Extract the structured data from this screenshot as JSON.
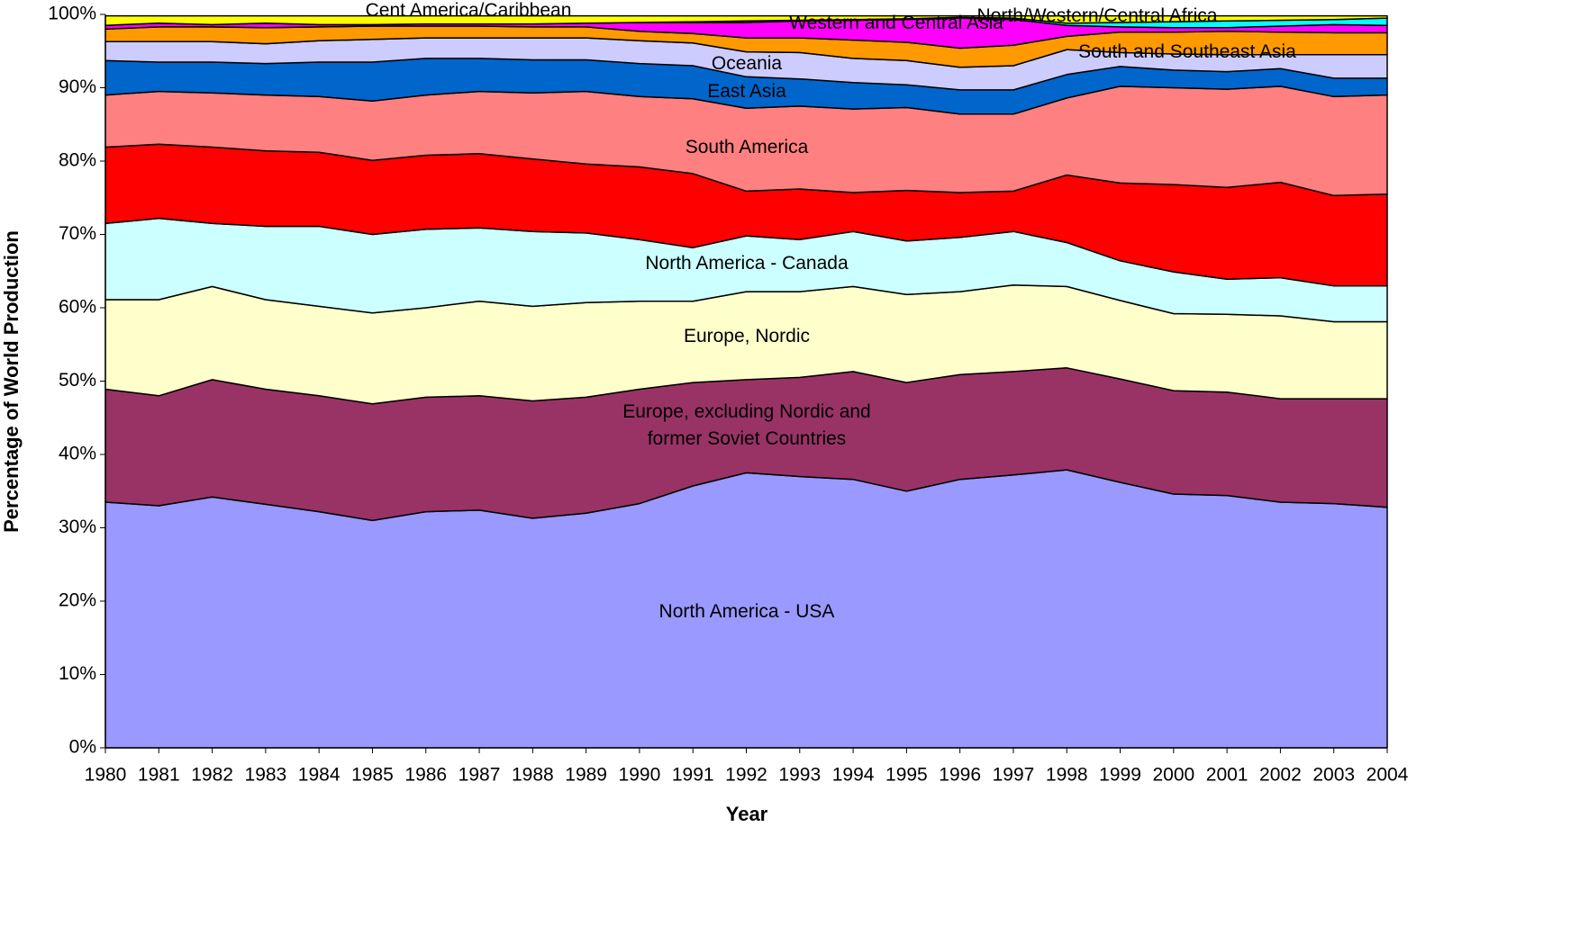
{
  "chart_data": {
    "type": "area",
    "stacked": true,
    "x_label": "Year",
    "y_label": "Percentage of World Production",
    "categories": [
      "1980",
      "1981",
      "1982",
      "1983",
      "1984",
      "1985",
      "1986",
      "1987",
      "1988",
      "1989",
      "1990",
      "1991",
      "1992",
      "1993",
      "1994",
      "1995",
      "1996",
      "1997",
      "1998",
      "1999",
      "2000",
      "2001",
      "2002",
      "2003",
      "2004"
    ],
    "ylim": [
      0,
      100
    ],
    "yticks": [
      {
        "value": 0,
        "label": "0%"
      },
      {
        "value": 10,
        "label": "10%"
      },
      {
        "value": 20,
        "label": "20%"
      },
      {
        "value": 30,
        "label": "30%"
      },
      {
        "value": 40,
        "label": "40%"
      },
      {
        "value": 50,
        "label": "50%"
      },
      {
        "value": 60,
        "label": "60%"
      },
      {
        "value": 70,
        "label": "70%"
      },
      {
        "value": 80,
        "label": "80%"
      },
      {
        "value": 90,
        "label": "90%"
      },
      {
        "value": 100,
        "label": "100%"
      }
    ],
    "grid": false,
    "series": [
      {
        "name": "North America - USA",
        "color": "#9999FF",
        "values": [
          33.5,
          33,
          34.2,
          33.2,
          32.2,
          31,
          32.2,
          32.4,
          31.3,
          32,
          33.3,
          35.7,
          37.5,
          37,
          36.6,
          35,
          36.6,
          37.2,
          37.9,
          36.2,
          34.6,
          34.4,
          33.5,
          33.3,
          32.8
        ]
      },
      {
        "name": "Europe, excluding Nordic and former Soviet Countries",
        "color": "#993366",
        "values": [
          15.4,
          15,
          16,
          15.7,
          15.8,
          15.9,
          15.6,
          15.6,
          16,
          15.8,
          15.6,
          14.1,
          12.7,
          13.5,
          14.7,
          14.8,
          14.3,
          14.1,
          13.9,
          14.1,
          14.1,
          14.1,
          14.1,
          14.3,
          14.8
        ]
      },
      {
        "name": "Europe, Nordic",
        "color": "#FFFFCC",
        "values": [
          12.2,
          13.1,
          12.7,
          12.2,
          12.2,
          12.4,
          12.2,
          12.9,
          12.9,
          12.9,
          12,
          11.1,
          12,
          11.7,
          11.6,
          12,
          11.3,
          11.8,
          11.1,
          10.7,
          10.5,
          10.6,
          11.3,
          10.5,
          10.5
        ]
      },
      {
        "name": "North America - Canada",
        "color": "#CCFFFF",
        "values": [
          10.4,
          11.1,
          8.6,
          10,
          10.9,
          10.7,
          10.7,
          10,
          10.2,
          9.5,
          8.4,
          7.3,
          7.6,
          7.1,
          7.5,
          7.3,
          7.4,
          7.3,
          6,
          5.4,
          5.7,
          4.8,
          5.2,
          4.9,
          4.9
        ]
      },
      {
        "name": null,
        "color": "#FF0000",
        "values": [
          10.4,
          10.1,
          10.4,
          10.3,
          10.1,
          10.1,
          10.1,
          10.1,
          9.9,
          9.4,
          9.9,
          10.1,
          6.1,
          6.9,
          5.3,
          6.9,
          6.1,
          5.5,
          9.2,
          10.6,
          11.9,
          12.5,
          13,
          12.3,
          12.5
        ]
      },
      {
        "name": "South America",
        "color": "#FF8080",
        "values": [
          7.1,
          7.2,
          7.4,
          7.6,
          7.6,
          8.1,
          8.2,
          8.5,
          9,
          9.9,
          9.6,
          10.2,
          11.3,
          11.3,
          11.4,
          11.3,
          10.7,
          10.5,
          10.5,
          13.2,
          13.2,
          13.4,
          13.1,
          13.5,
          13.5
        ]
      },
      {
        "name": "East Asia",
        "color": "#0066CC",
        "values": [
          4.7,
          4,
          4.2,
          4.3,
          4.7,
          5.3,
          5,
          4.5,
          4.5,
          4.3,
          4.5,
          4.5,
          4.3,
          3.7,
          3.6,
          3.1,
          3.3,
          3.3,
          3.2,
          2.7,
          2.4,
          2.4,
          2.4,
          2.5,
          2.3
        ]
      },
      {
        "name": "Oceania",
        "color": "#CCCCFF",
        "values": [
          2.6,
          2.8,
          2.8,
          2.7,
          2.9,
          3.1,
          2.8,
          2.8,
          3,
          3,
          3.1,
          3.1,
          3.4,
          3.6,
          3.3,
          3.3,
          3.1,
          3.3,
          3.4,
          1.9,
          2.2,
          2.3,
          1.9,
          3.2,
          3.2
        ]
      },
      {
        "name": "South and Southeast Asia",
        "color": "#FF9900",
        "values": [
          1.7,
          2,
          2,
          2.2,
          1.9,
          1.8,
          1.6,
          1.6,
          1.5,
          1.5,
          1.3,
          1.3,
          1.9,
          2,
          2.5,
          2.5,
          2.6,
          2.8,
          1.8,
          2.8,
          3,
          3.2,
          3.1,
          3,
          3
        ]
      },
      {
        "name": "Western and Central Asia",
        "color": "#FF00FF",
        "values": [
          0.5,
          0.5,
          0.3,
          0.6,
          0.3,
          0.2,
          0.3,
          0.3,
          0.4,
          0.5,
          1.2,
          1.5,
          2.1,
          2.3,
          2.7,
          3.1,
          4.1,
          3.5,
          1.5,
          0.7,
          0.6,
          0.5,
          0.8,
          1.1,
          1
        ]
      },
      {
        "name": "North/Western/Central Africa",
        "color": "#00FFFF",
        "values": [
          0,
          0,
          0,
          0,
          0,
          0,
          0,
          0,
          0,
          0,
          0,
          0.1,
          0.2,
          0.1,
          0.1,
          0.1,
          0.1,
          0.2,
          0.3,
          0.6,
          0.8,
          0.9,
          0.8,
          0.7,
          1
        ]
      },
      {
        "name": "Cent America/Caribbean",
        "color": "#FFFF00",
        "values": [
          1.3,
          1,
          1.2,
          1,
          1.2,
          1.2,
          1.1,
          1.1,
          1.1,
          1,
          0.9,
          0.8,
          0.7,
          0.6,
          0.5,
          0.4,
          0.2,
          0.3,
          1,
          0.9,
          0.8,
          0.7,
          0.6,
          0.5,
          0.3
        ]
      }
    ]
  }
}
